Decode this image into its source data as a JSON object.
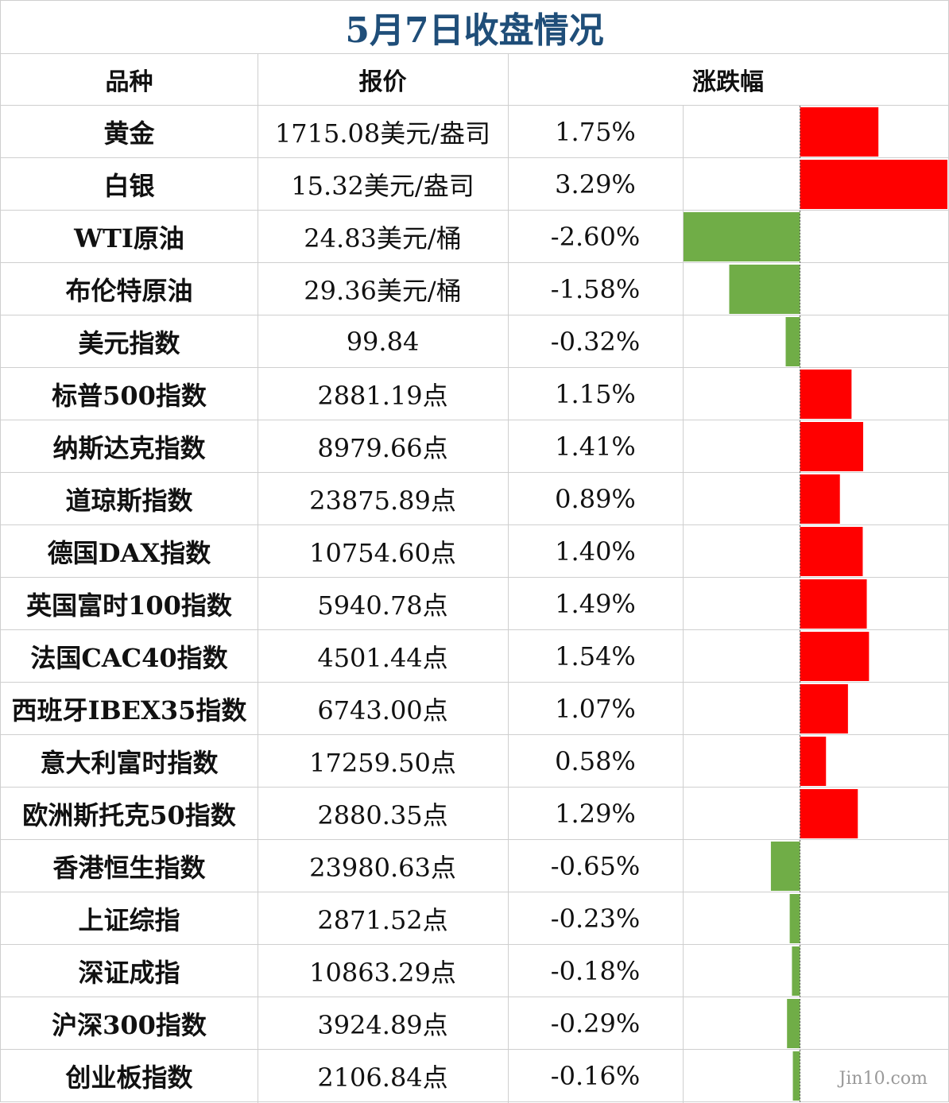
{
  "title": "5月7日收盘情况",
  "headers": {
    "name": "品种",
    "price": "报价",
    "change": "涨跌幅"
  },
  "colors": {
    "up": "#ff0000",
    "down": "#70ad47",
    "title": "#1f4e79",
    "grid": "#cfcfcf"
  },
  "watermark": "Jin10.com",
  "rows": [
    {
      "name": "黄金",
      "price": "1715.08美元/盎司",
      "change": "1.75%"
    },
    {
      "name": "白银",
      "price": "15.32美元/盎司",
      "change": "3.29%"
    },
    {
      "name": "WTI原油",
      "price": "24.83美元/桶",
      "change": "-2.60%"
    },
    {
      "name": "布伦特原油",
      "price": "29.36美元/桶",
      "change": "-1.58%"
    },
    {
      "name": "美元指数",
      "price": "99.84",
      "change": "-0.32%"
    },
    {
      "name": "标普500指数",
      "price": "2881.19点",
      "change": "1.15%"
    },
    {
      "name": "纳斯达克指数",
      "price": "8979.66点",
      "change": "1.41%"
    },
    {
      "name": "道琼斯指数",
      "price": "23875.89点",
      "change": "0.89%"
    },
    {
      "name": "德国DAX指数",
      "price": "10754.60点",
      "change": "1.40%"
    },
    {
      "name": "英国富时100指数",
      "price": "5940.78点",
      "change": "1.49%"
    },
    {
      "name": "法国CAC40指数",
      "price": "4501.44点",
      "change": "1.54%"
    },
    {
      "name": "西班牙IBEX35指数",
      "price": "6743.00点",
      "change": "1.07%"
    },
    {
      "name": "意大利富时指数",
      "price": "17259.50点",
      "change": "0.58%"
    },
    {
      "name": "欧洲斯托克50指数",
      "price": "2880.35点",
      "change": "1.29%"
    },
    {
      "name": "香港恒生指数",
      "price": "23980.63点",
      "change": "-0.65%"
    },
    {
      "name": "上证综指",
      "price": "2871.52点",
      "change": "-0.23%"
    },
    {
      "name": "深证成指",
      "price": "10863.29点",
      "change": "-0.18%"
    },
    {
      "name": "沪深300指数",
      "price": "3924.89点",
      "change": "-0.29%"
    },
    {
      "name": "创业板指数",
      "price": "2106.84点",
      "change": "-0.16%"
    }
  ],
  "chart_data": {
    "type": "bar",
    "orientation": "horizontal",
    "categories": [
      "黄金",
      "白银",
      "WTI原油",
      "布伦特原油",
      "美元指数",
      "标普500指数",
      "纳斯达克指数",
      "道琼斯指数",
      "德国DAX指数",
      "英国富时100指数",
      "法国CAC40指数",
      "西班牙IBEX35指数",
      "意大利富时指数",
      "欧洲斯托克50指数",
      "香港恒生指数",
      "上证综指",
      "深证成指",
      "沪深300指数",
      "创业板指数"
    ],
    "values": [
      1.75,
      3.29,
      -2.6,
      -1.58,
      -0.32,
      1.15,
      1.41,
      0.89,
      1.4,
      1.49,
      1.54,
      1.07,
      0.58,
      1.29,
      -0.65,
      -0.23,
      -0.18,
      -0.29,
      -0.16
    ],
    "unit": "%",
    "xlim": [
      -2.6,
      3.29
    ],
    "positive_color": "#ff0000",
    "negative_color": "#70ad47",
    "grid": false,
    "legend": "none"
  }
}
